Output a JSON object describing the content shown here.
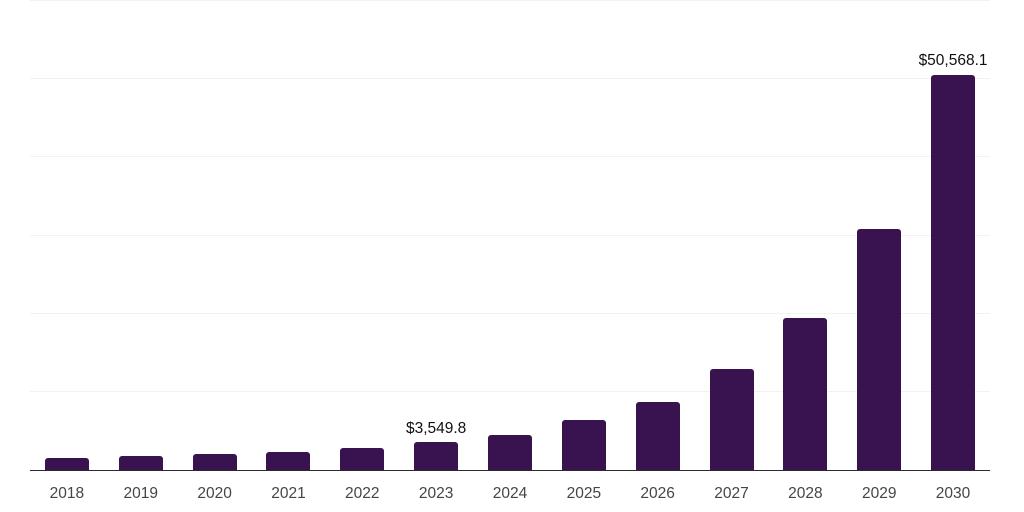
{
  "chart_data": {
    "type": "bar",
    "title": "",
    "xlabel": "",
    "ylabel": "",
    "categories": [
      "2018",
      "2019",
      "2020",
      "2021",
      "2022",
      "2023",
      "2024",
      "2025",
      "2026",
      "2027",
      "2028",
      "2029",
      "2030"
    ],
    "values": [
      1500,
      1800,
      2050,
      2350,
      2800,
      3549.8,
      4500,
      6400,
      8740,
      12900,
      19500,
      30800,
      50568.1
    ],
    "data_labels": {
      "2023": "$3,549.8",
      "2030": "$50,568.1"
    },
    "ylim": [
      0,
      60000
    ],
    "gridline_step": 10000,
    "grid": true,
    "legend": false,
    "colors": {
      "bar": "#38134f",
      "gridline": "#f2f2f2",
      "axis_line": "#2b2b2b",
      "tick_label": "#454545",
      "data_label": "#101010",
      "background": "#ffffff"
    }
  }
}
